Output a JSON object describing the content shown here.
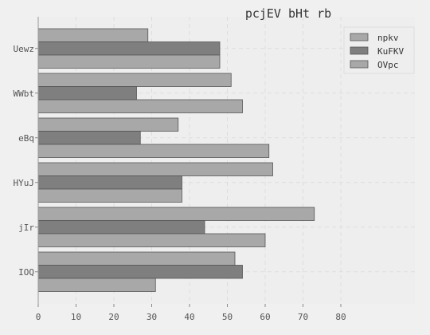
{
  "chart_data": {
    "type": "bar",
    "orientation": "horizontal",
    "title": "pcjEV bHt  rb",
    "xlabel": "",
    "ylabel": "",
    "categories": [
      "Uewz",
      "WWbt",
      "eBq",
      "HYuJ",
      "jIr",
      "IOQ"
    ],
    "series": [
      {
        "name": "npkv",
        "color": "#a8a8a8",
        "values": [
          29,
          51,
          37,
          62,
          73,
          52
        ]
      },
      {
        "name": "KuFKV",
        "color": "#7f7f7f",
        "values": [
          48,
          26,
          27,
          38,
          44,
          54
        ]
      },
      {
        "name": "OVpc",
        "color": "#a8a8a8",
        "values": [
          48,
          54,
          61,
          38,
          60,
          31
        ]
      }
    ],
    "xlim": [
      0,
      80
    ],
    "xticks": [
      0,
      10,
      20,
      30,
      40,
      50,
      60,
      70,
      80
    ],
    "grid": true,
    "legend_position": "top-right",
    "colors": {
      "background": "#f0f0f0",
      "plot_background": "#eeeeee",
      "grid": "#dddddd",
      "bar_edge": "#555555"
    }
  }
}
